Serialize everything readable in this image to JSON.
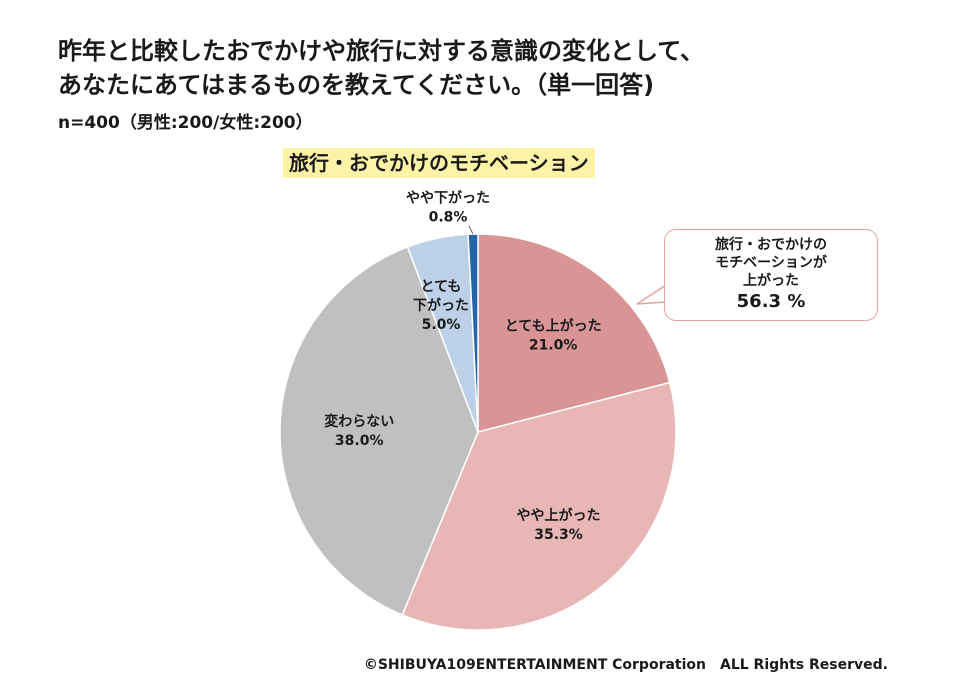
{
  "title": {
    "line1": "昨年と比較したおでかけや旅行に対する意識の変化として、",
    "line2": "あなたにあてはまるものを教えてください。（単一回答)"
  },
  "sample": "n=400（男性:200/女性:200）",
  "chart_data": {
    "type": "pie",
    "title": "旅行・おでかけのモチベーション",
    "unit": "%",
    "start": "12 o'clock",
    "direction": "clockwise",
    "slices": [
      {
        "label": "とても上がった",
        "value": 21.0,
        "value_label": "21.0%",
        "color": "#d99595"
      },
      {
        "label": "やや上がった",
        "value": 35.3,
        "value_label": "35.3%",
        "color": "#e9b6b6"
      },
      {
        "label": "変わらない",
        "value": 38.0,
        "value_label": "38.0%",
        "color": "#c0c0c0"
      },
      {
        "label_lines": [
          "とても",
          "下がった"
        ],
        "value": 5.0,
        "value_label": "5.0%",
        "color": "#bcd0e8"
      },
      {
        "label": "やや下がった",
        "value": 0.8,
        "value_label": "0.8%",
        "color": "#2464a8"
      }
    ],
    "annotation": {
      "lines": [
        "旅行・おでかけの",
        "モチベーションが",
        "上がった"
      ],
      "value": "56.3 %"
    }
  },
  "footer": "©SHIBUYA109ENTERTAINMENT Corporation　ALL Rights Reserved."
}
